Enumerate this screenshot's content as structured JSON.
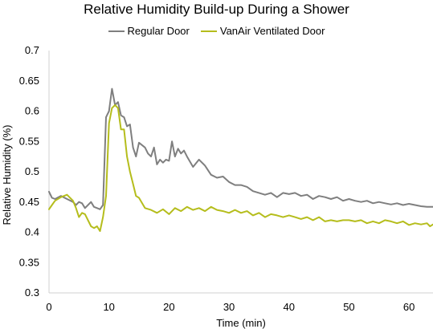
{
  "chart_data": {
    "type": "line",
    "title": "Relative Humidity Build-up During a Shower",
    "xlabel": "Time (min)",
    "ylabel": "Relative Humidity (%)",
    "xlim": [
      0,
      64
    ],
    "ylim": [
      0.3,
      0.7
    ],
    "x_ticks": [
      0,
      10,
      20,
      30,
      40,
      50,
      60
    ],
    "y_ticks": [
      0.3,
      0.35,
      0.4,
      0.45,
      0.5,
      0.55,
      0.6,
      0.65,
      0.7
    ],
    "x_tick_labels": [
      "0",
      "10",
      "20",
      "30",
      "40",
      "50",
      "60"
    ],
    "y_tick_labels": [
      "0.3",
      "0.35",
      "0.4",
      "0.45",
      "0.5",
      "0.55",
      "0.6",
      "0.65",
      "0.7"
    ],
    "grid": false,
    "legend_position": "top",
    "series": [
      {
        "name": "Regular Door",
        "color": "#7f7f7f",
        "x": [
          0,
          0.5,
          1,
          2,
          3,
          4,
          4.5,
          5,
          5.5,
          6,
          7,
          7.5,
          8,
          8.5,
          9,
          9.5,
          10,
          10.5,
          11,
          11.5,
          12,
          12.5,
          13,
          13.5,
          14,
          14.5,
          15,
          16,
          16.5,
          17,
          17.5,
          18,
          18.5,
          19,
          19.5,
          20,
          20.5,
          21,
          21.5,
          22,
          22.5,
          23,
          24,
          25,
          26,
          27,
          28,
          29,
          30,
          31,
          32,
          33,
          34,
          35,
          36,
          37,
          38,
          39,
          40,
          41,
          42,
          43,
          44,
          45,
          46,
          47,
          48,
          49,
          50,
          51,
          52,
          53,
          54,
          55,
          56,
          57,
          58,
          59,
          60,
          61,
          62,
          63,
          64
        ],
        "y": [
          0.467,
          0.457,
          0.455,
          0.46,
          0.455,
          0.45,
          0.445,
          0.45,
          0.448,
          0.44,
          0.45,
          0.442,
          0.44,
          0.438,
          0.445,
          0.59,
          0.6,
          0.637,
          0.61,
          0.615,
          0.593,
          0.59,
          0.575,
          0.578,
          0.54,
          0.525,
          0.548,
          0.54,
          0.53,
          0.525,
          0.54,
          0.512,
          0.52,
          0.515,
          0.52,
          0.518,
          0.55,
          0.525,
          0.538,
          0.53,
          0.535,
          0.525,
          0.508,
          0.52,
          0.51,
          0.495,
          0.49,
          0.492,
          0.483,
          0.478,
          0.478,
          0.475,
          0.468,
          0.465,
          0.462,
          0.465,
          0.458,
          0.465,
          0.463,
          0.465,
          0.46,
          0.462,
          0.455,
          0.46,
          0.458,
          0.455,
          0.458,
          0.452,
          0.455,
          0.452,
          0.45,
          0.452,
          0.448,
          0.45,
          0.448,
          0.446,
          0.448,
          0.445,
          0.447,
          0.445,
          0.443,
          0.442,
          0.442
        ]
      },
      {
        "name": "VanAir Ventilated Door",
        "color": "#b5bd1c",
        "x": [
          0,
          0.5,
          1,
          2,
          3,
          4,
          4.5,
          5,
          5.5,
          6,
          7,
          7.5,
          8,
          8.5,
          9,
          9.5,
          10,
          10.5,
          11,
          11.5,
          12,
          12.5,
          13,
          13.5,
          14,
          14.5,
          15,
          16,
          17,
          18,
          19,
          20,
          21,
          22,
          23,
          24,
          25,
          26,
          27,
          28,
          29,
          30,
          31,
          32,
          33,
          34,
          35,
          36,
          37,
          38,
          39,
          40,
          41,
          42,
          43,
          44,
          45,
          46,
          47,
          48,
          49,
          50,
          51,
          52,
          53,
          54,
          55,
          56,
          57,
          58,
          59,
          60,
          61,
          62,
          63,
          63.5,
          64
        ],
        "y": [
          0.438,
          0.445,
          0.452,
          0.458,
          0.462,
          0.452,
          0.44,
          0.425,
          0.432,
          0.43,
          0.41,
          0.407,
          0.41,
          0.402,
          0.425,
          0.46,
          0.58,
          0.605,
          0.61,
          0.605,
          0.57,
          0.57,
          0.525,
          0.5,
          0.48,
          0.46,
          0.457,
          0.44,
          0.437,
          0.432,
          0.438,
          0.43,
          0.44,
          0.435,
          0.442,
          0.437,
          0.44,
          0.435,
          0.442,
          0.437,
          0.435,
          0.432,
          0.437,
          0.432,
          0.435,
          0.428,
          0.432,
          0.425,
          0.43,
          0.428,
          0.425,
          0.428,
          0.425,
          0.422,
          0.425,
          0.42,
          0.425,
          0.418,
          0.42,
          0.418,
          0.42,
          0.42,
          0.418,
          0.42,
          0.415,
          0.418,
          0.415,
          0.42,
          0.418,
          0.415,
          0.418,
          0.412,
          0.415,
          0.413,
          0.415,
          0.41,
          0.413
        ]
      }
    ]
  }
}
